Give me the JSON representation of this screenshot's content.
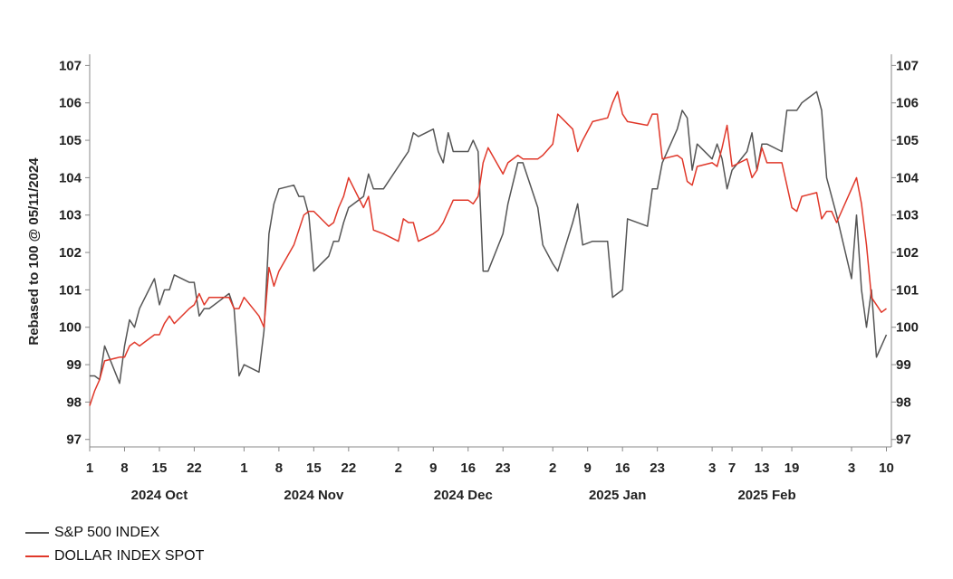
{
  "chart_data": {
    "type": "line",
    "ylabel": "Rebased to 100 @ 05/11/2024",
    "ylim": [
      96.8,
      107.3
    ],
    "yticks": [
      97,
      98,
      99,
      100,
      101,
      102,
      103,
      104,
      105,
      106,
      107
    ],
    "x_tick_labels": [
      "1",
      "8",
      "15",
      "22",
      "1",
      "8",
      "15",
      "22",
      "2",
      "9",
      "16",
      "23",
      "2",
      "9",
      "16",
      "23",
      "3",
      "7",
      "13",
      "19",
      "3",
      "10"
    ],
    "x_tick_dates": [
      "2024-10-01",
      "2024-10-08",
      "2024-10-15",
      "2024-10-22",
      "2024-11-01",
      "2024-11-08",
      "2024-11-15",
      "2024-11-22",
      "2024-12-02",
      "2024-12-09",
      "2024-12-16",
      "2024-12-23",
      "2025-01-02",
      "2025-01-09",
      "2025-01-16",
      "2025-01-23",
      "2025-02-03",
      "2025-02-07",
      "2025-02-13",
      "2025-02-19",
      "2025-03-03",
      "2025-03-10"
    ],
    "month_labels": [
      {
        "label": "2024 Oct",
        "date": "2024-10-15"
      },
      {
        "label": "2024 Nov",
        "date": "2024-11-15"
      },
      {
        "label": "2024 Dec",
        "date": "2024-12-15"
      },
      {
        "label": "2025 Jan",
        "date": "2025-01-15"
      },
      {
        "label": "2025 Feb",
        "date": "2025-02-14"
      }
    ],
    "xlim": [
      "2024-10-01",
      "2025-03-11"
    ],
    "grid": false,
    "legend_placement": "bottom-left",
    "series": [
      {
        "name": "S&P 500 INDEX",
        "color": "#555555",
        "points": [
          [
            "2024-10-01",
            98.7
          ],
          [
            "2024-10-02",
            98.7
          ],
          [
            "2024-10-03",
            98.6
          ],
          [
            "2024-10-04",
            99.5
          ],
          [
            "2024-10-07",
            98.5
          ],
          [
            "2024-10-08",
            99.5
          ],
          [
            "2024-10-09",
            100.2
          ],
          [
            "2024-10-10",
            100.0
          ],
          [
            "2024-10-11",
            100.5
          ],
          [
            "2024-10-14",
            101.3
          ],
          [
            "2024-10-15",
            100.6
          ],
          [
            "2024-10-16",
            101.0
          ],
          [
            "2024-10-17",
            101.0
          ],
          [
            "2024-10-18",
            101.4
          ],
          [
            "2024-10-21",
            101.2
          ],
          [
            "2024-10-22",
            101.2
          ],
          [
            "2024-10-23",
            100.3
          ],
          [
            "2024-10-24",
            100.5
          ],
          [
            "2024-10-25",
            100.5
          ],
          [
            "2024-10-28",
            100.8
          ],
          [
            "2024-10-29",
            100.9
          ],
          [
            "2024-10-30",
            100.5
          ],
          [
            "2024-10-31",
            98.7
          ],
          [
            "2024-11-01",
            99.0
          ],
          [
            "2024-11-04",
            98.8
          ],
          [
            "2024-11-05",
            99.9
          ],
          [
            "2024-11-06",
            102.5
          ],
          [
            "2024-11-07",
            103.3
          ],
          [
            "2024-11-08",
            103.7
          ],
          [
            "2024-11-11",
            103.8
          ],
          [
            "2024-11-12",
            103.5
          ],
          [
            "2024-11-13",
            103.5
          ],
          [
            "2024-11-14",
            103.0
          ],
          [
            "2024-11-15",
            101.5
          ],
          [
            "2024-11-18",
            101.9
          ],
          [
            "2024-11-19",
            102.3
          ],
          [
            "2024-11-20",
            102.3
          ],
          [
            "2024-11-21",
            102.8
          ],
          [
            "2024-11-22",
            103.2
          ],
          [
            "2024-11-25",
            103.5
          ],
          [
            "2024-11-26",
            104.1
          ],
          [
            "2024-11-27",
            103.7
          ],
          [
            "2024-11-29",
            103.7
          ],
          [
            "2024-12-02",
            104.3
          ],
          [
            "2024-12-03",
            104.5
          ],
          [
            "2024-12-04",
            104.7
          ],
          [
            "2024-12-05",
            105.2
          ],
          [
            "2024-12-06",
            105.1
          ],
          [
            "2024-12-09",
            105.3
          ],
          [
            "2024-12-10",
            104.7
          ],
          [
            "2024-12-11",
            104.4
          ],
          [
            "2024-12-12",
            105.2
          ],
          [
            "2024-12-13",
            104.7
          ],
          [
            "2024-12-16",
            104.7
          ],
          [
            "2024-12-17",
            105.0
          ],
          [
            "2024-12-18",
            104.7
          ],
          [
            "2024-12-19",
            101.5
          ],
          [
            "2024-12-20",
            101.5
          ],
          [
            "2024-12-23",
            102.5
          ],
          [
            "2024-12-24",
            103.3
          ],
          [
            "2024-12-26",
            104.4
          ],
          [
            "2024-12-27",
            104.4
          ],
          [
            "2024-12-30",
            103.2
          ],
          [
            "2024-12-31",
            102.2
          ],
          [
            "2025-01-02",
            101.7
          ],
          [
            "2025-01-03",
            101.5
          ],
          [
            "2025-01-06",
            102.8
          ],
          [
            "2025-01-07",
            103.3
          ],
          [
            "2025-01-08",
            102.2
          ],
          [
            "2025-01-10",
            102.3
          ],
          [
            "2025-01-13",
            102.3
          ],
          [
            "2025-01-14",
            100.8
          ],
          [
            "2025-01-15",
            100.9
          ],
          [
            "2025-01-16",
            101.0
          ],
          [
            "2025-01-17",
            102.9
          ],
          [
            "2025-01-21",
            102.7
          ],
          [
            "2025-01-22",
            103.7
          ],
          [
            "2025-01-23",
            103.7
          ],
          [
            "2025-01-24",
            104.4
          ],
          [
            "2025-01-27",
            105.3
          ],
          [
            "2025-01-28",
            105.8
          ],
          [
            "2025-01-29",
            105.6
          ],
          [
            "2025-01-30",
            104.2
          ],
          [
            "2025-01-31",
            104.9
          ],
          [
            "2025-02-03",
            104.5
          ],
          [
            "2025-02-04",
            104.9
          ],
          [
            "2025-02-05",
            104.5
          ],
          [
            "2025-02-06",
            103.7
          ],
          [
            "2025-02-07",
            104.2
          ],
          [
            "2025-02-10",
            104.7
          ],
          [
            "2025-02-11",
            105.2
          ],
          [
            "2025-02-12",
            104.2
          ],
          [
            "2025-02-13",
            104.9
          ],
          [
            "2025-02-14",
            104.9
          ],
          [
            "2025-02-17",
            104.7
          ],
          [
            "2025-02-18",
            105.8
          ],
          [
            "2025-02-19",
            105.8
          ],
          [
            "2025-02-20",
            105.8
          ],
          [
            "2025-02-21",
            106.0
          ],
          [
            "2025-02-24",
            106.3
          ],
          [
            "2025-02-25",
            105.8
          ],
          [
            "2025-02-26",
            104.0
          ],
          [
            "2025-02-27",
            103.5
          ],
          [
            "2025-02-28",
            103.0
          ],
          [
            "2025-03-03",
            101.3
          ],
          [
            "2025-03-04",
            103.0
          ],
          [
            "2025-03-05",
            101.0
          ],
          [
            "2025-03-06",
            100.0
          ],
          [
            "2025-03-07",
            101.0
          ],
          [
            "2025-03-08",
            99.2
          ],
          [
            "2025-03-10",
            99.8
          ]
        ]
      },
      {
        "name": "DOLLAR INDEX SPOT",
        "color": "#e0382a",
        "points": [
          [
            "2024-10-01",
            97.9
          ],
          [
            "2024-10-02",
            98.3
          ],
          [
            "2024-10-03",
            98.6
          ],
          [
            "2024-10-04",
            99.1
          ],
          [
            "2024-10-07",
            99.2
          ],
          [
            "2024-10-08",
            99.2
          ],
          [
            "2024-10-09",
            99.5
          ],
          [
            "2024-10-10",
            99.6
          ],
          [
            "2024-10-11",
            99.5
          ],
          [
            "2024-10-14",
            99.8
          ],
          [
            "2024-10-15",
            99.8
          ],
          [
            "2024-10-16",
            100.1
          ],
          [
            "2024-10-17",
            100.3
          ],
          [
            "2024-10-18",
            100.1
          ],
          [
            "2024-10-21",
            100.5
          ],
          [
            "2024-10-22",
            100.6
          ],
          [
            "2024-10-23",
            100.9
          ],
          [
            "2024-10-24",
            100.6
          ],
          [
            "2024-10-25",
            100.8
          ],
          [
            "2024-10-28",
            100.8
          ],
          [
            "2024-10-29",
            100.8
          ],
          [
            "2024-10-30",
            100.5
          ],
          [
            "2024-10-31",
            100.5
          ],
          [
            "2024-11-01",
            100.8
          ],
          [
            "2024-11-04",
            100.3
          ],
          [
            "2024-11-05",
            100.0
          ],
          [
            "2024-11-06",
            101.6
          ],
          [
            "2024-11-07",
            101.1
          ],
          [
            "2024-11-08",
            101.5
          ],
          [
            "2024-11-11",
            102.2
          ],
          [
            "2024-11-12",
            102.6
          ],
          [
            "2024-11-13",
            103.0
          ],
          [
            "2024-11-14",
            103.1
          ],
          [
            "2024-11-15",
            103.1
          ],
          [
            "2024-11-18",
            102.7
          ],
          [
            "2024-11-19",
            102.8
          ],
          [
            "2024-11-20",
            103.2
          ],
          [
            "2024-11-21",
            103.5
          ],
          [
            "2024-11-22",
            104.0
          ],
          [
            "2024-11-25",
            103.2
          ],
          [
            "2024-11-26",
            103.5
          ],
          [
            "2024-11-27",
            102.6
          ],
          [
            "2024-11-29",
            102.5
          ],
          [
            "2024-12-02",
            102.3
          ],
          [
            "2024-12-03",
            102.9
          ],
          [
            "2024-12-04",
            102.8
          ],
          [
            "2024-12-05",
            102.8
          ],
          [
            "2024-12-06",
            102.3
          ],
          [
            "2024-12-09",
            102.5
          ],
          [
            "2024-12-10",
            102.6
          ],
          [
            "2024-12-11",
            102.8
          ],
          [
            "2024-12-12",
            103.1
          ],
          [
            "2024-12-13",
            103.4
          ],
          [
            "2024-12-16",
            103.4
          ],
          [
            "2024-12-17",
            103.3
          ],
          [
            "2024-12-18",
            103.5
          ],
          [
            "2024-12-19",
            104.4
          ],
          [
            "2024-12-20",
            104.8
          ],
          [
            "2024-12-23",
            104.1
          ],
          [
            "2024-12-24",
            104.4
          ],
          [
            "2024-12-26",
            104.6
          ],
          [
            "2024-12-27",
            104.5
          ],
          [
            "2024-12-30",
            104.5
          ],
          [
            "2024-12-31",
            104.6
          ],
          [
            "2025-01-02",
            104.9
          ],
          [
            "2025-01-03",
            105.7
          ],
          [
            "2025-01-06",
            105.3
          ],
          [
            "2025-01-07",
            104.7
          ],
          [
            "2025-01-08",
            105.0
          ],
          [
            "2025-01-10",
            105.5
          ],
          [
            "2025-01-13",
            105.6
          ],
          [
            "2025-01-14",
            106.0
          ],
          [
            "2025-01-15",
            106.3
          ],
          [
            "2025-01-16",
            105.7
          ],
          [
            "2025-01-17",
            105.5
          ],
          [
            "2025-01-21",
            105.4
          ],
          [
            "2025-01-22",
            105.7
          ],
          [
            "2025-01-23",
            105.7
          ],
          [
            "2025-01-24",
            104.5
          ],
          [
            "2025-01-27",
            104.6
          ],
          [
            "2025-01-28",
            104.5
          ],
          [
            "2025-01-29",
            103.9
          ],
          [
            "2025-01-30",
            103.8
          ],
          [
            "2025-01-31",
            104.3
          ],
          [
            "2025-02-03",
            104.4
          ],
          [
            "2025-02-04",
            104.3
          ],
          [
            "2025-02-05",
            104.8
          ],
          [
            "2025-02-06",
            105.4
          ],
          [
            "2025-02-07",
            104.3
          ],
          [
            "2025-02-10",
            104.5
          ],
          [
            "2025-02-11",
            104.0
          ],
          [
            "2025-02-12",
            104.2
          ],
          [
            "2025-02-13",
            104.8
          ],
          [
            "2025-02-14",
            104.4
          ],
          [
            "2025-02-17",
            104.4
          ],
          [
            "2025-02-18",
            103.8
          ],
          [
            "2025-02-19",
            103.2
          ],
          [
            "2025-02-20",
            103.1
          ],
          [
            "2025-02-21",
            103.5
          ],
          [
            "2025-02-24",
            103.6
          ],
          [
            "2025-02-25",
            102.9
          ],
          [
            "2025-02-26",
            103.1
          ],
          [
            "2025-02-27",
            103.1
          ],
          [
            "2025-02-28",
            102.8
          ],
          [
            "2025-03-03",
            103.7
          ],
          [
            "2025-03-04",
            104.0
          ],
          [
            "2025-03-05",
            103.3
          ],
          [
            "2025-03-06",
            102.2
          ],
          [
            "2025-03-07",
            100.8
          ],
          [
            "2025-03-08",
            100.6
          ],
          [
            "2025-03-09",
            100.4
          ],
          [
            "2025-03-10",
            100.5
          ]
        ]
      }
    ]
  }
}
